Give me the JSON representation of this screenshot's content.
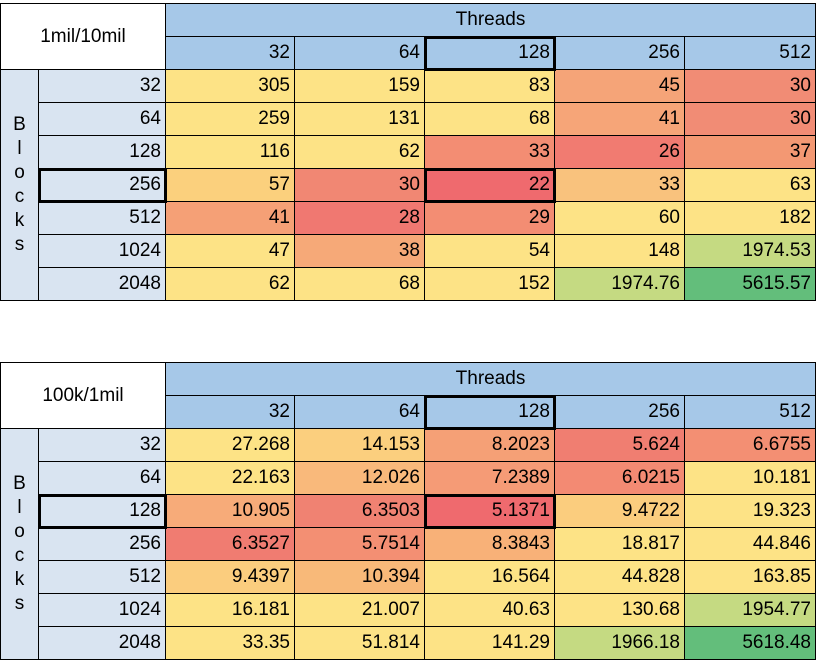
{
  "tables": [
    {
      "corner_label": "1mil/10mil",
      "threads_label": "Threads",
      "blocks_letters": [
        "B",
        "l",
        "o",
        "c",
        "k",
        "s"
      ],
      "thread_columns": [
        "32",
        "64",
        "128",
        "256",
        "512"
      ],
      "rows": [
        {
          "block": "32",
          "values": [
            "305",
            "159",
            "83",
            "45",
            "30"
          ],
          "colors": [
            "#fde386",
            "#fde386",
            "#fde386",
            "#f5a478",
            "#f18c75"
          ]
        },
        {
          "block": "64",
          "values": [
            "259",
            "131",
            "68",
            "41",
            "30"
          ],
          "colors": [
            "#fde386",
            "#fde386",
            "#fde386",
            "#f6a578",
            "#f18c75"
          ]
        },
        {
          "block": "128",
          "values": [
            "116",
            "62",
            "33",
            "26",
            "37"
          ],
          "colors": [
            "#fde386",
            "#fde386",
            "#f38d73",
            "#f17b71",
            "#f39873"
          ]
        },
        {
          "block": "256",
          "values": [
            "57",
            "30",
            "22",
            "33",
            "63"
          ],
          "colors": [
            "#fbd07d",
            "#f18773",
            "#ef6a6e",
            "#f9c27d",
            "#fde386"
          ]
        },
        {
          "block": "512",
          "values": [
            "41",
            "28",
            "29",
            "60",
            "182"
          ],
          "colors": [
            "#f5a076",
            "#f07871",
            "#f38d73",
            "#fde386",
            "#fde386"
          ]
        },
        {
          "block": "1024",
          "values": [
            "47",
            "38",
            "54",
            "148",
            "1974.53"
          ],
          "colors": [
            "#fde386",
            "#f6a978",
            "#fde386",
            "#fde386",
            "#c5da82"
          ]
        },
        {
          "block": "2048",
          "values": [
            "62",
            "68",
            "152",
            "1974.76",
            "5615.57"
          ],
          "colors": [
            "#fde386",
            "#fde386",
            "#fde386",
            "#c5da82",
            "#63be7b"
          ]
        }
      ]
    },
    {
      "corner_label": "100k/1mil",
      "threads_label": "Threads",
      "blocks_letters": [
        "B",
        "l",
        "o",
        "c",
        "k",
        "s"
      ],
      "thread_columns": [
        "32",
        "64",
        "128",
        "256",
        "512"
      ],
      "rows": [
        {
          "block": "32",
          "values": [
            "27.268",
            "14.153",
            "8.2023",
            "5.624",
            "6.6755"
          ],
          "colors": [
            "#fde386",
            "#fbcf7e",
            "#f5a076",
            "#f07e71",
            "#f38f73"
          ]
        },
        {
          "block": "64",
          "values": [
            "22.163",
            "12.026",
            "7.2389",
            "6.0215",
            "10.181"
          ],
          "colors": [
            "#fde386",
            "#f9b97b",
            "#f59b76",
            "#f38a73",
            "#fde386"
          ]
        },
        {
          "block": "128",
          "values": [
            "10.905",
            "6.3503",
            "5.1371",
            "9.4722",
            "19.323"
          ],
          "colors": [
            "#f7ab79",
            "#f08272",
            "#ef6a6e",
            "#fbcd7e",
            "#fde386"
          ]
        },
        {
          "block": "256",
          "values": [
            "6.3527",
            "5.7514",
            "8.3843",
            "18.817",
            "44.846"
          ],
          "colors": [
            "#f07c71",
            "#f38f73",
            "#f8b178",
            "#fde386",
            "#fde386"
          ]
        },
        {
          "block": "512",
          "values": [
            "9.4397",
            "10.394",
            "16.564",
            "44.828",
            "163.85"
          ],
          "colors": [
            "#fbcd7e",
            "#f8b979",
            "#fde386",
            "#fde386",
            "#fde386"
          ]
        },
        {
          "block": "1024",
          "values": [
            "16.181",
            "21.007",
            "40.63",
            "130.68",
            "1954.77"
          ],
          "colors": [
            "#fde386",
            "#fde386",
            "#fde386",
            "#fde386",
            "#c5da82"
          ]
        },
        {
          "block": "2048",
          "values": [
            "33.35",
            "51.814",
            "141.29",
            "1966.18",
            "5618.48"
          ],
          "colors": [
            "#fde386",
            "#fde386",
            "#fde386",
            "#c5da82",
            "#63be7b"
          ]
        }
      ]
    }
  ]
}
